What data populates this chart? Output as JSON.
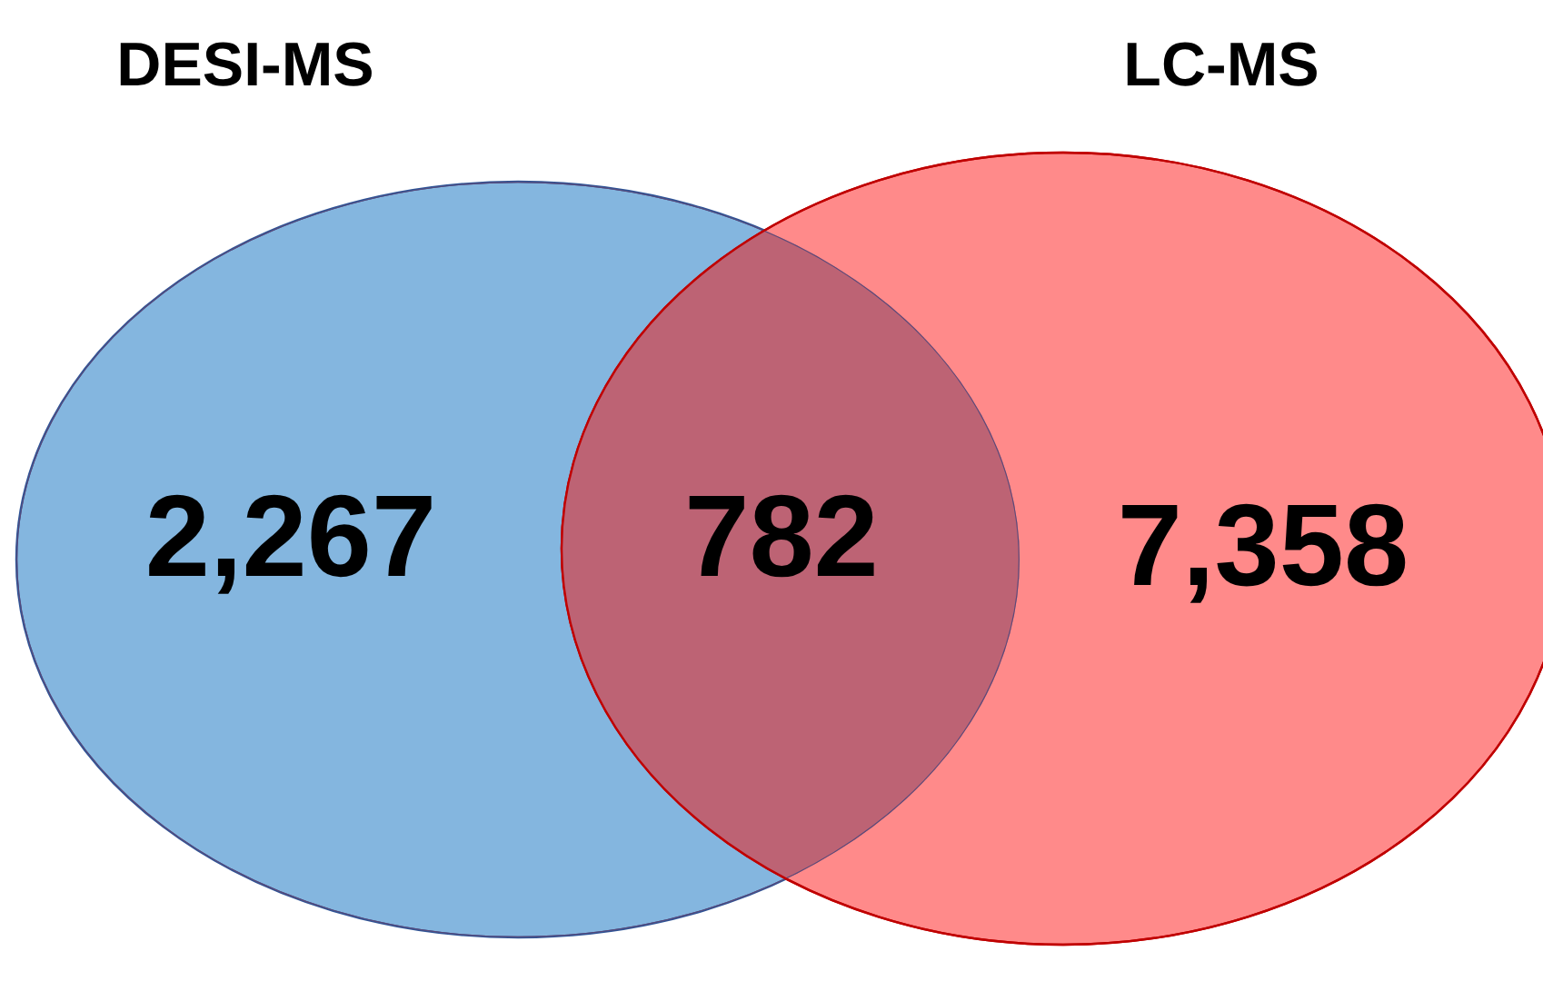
{
  "chart_data": {
    "type": "other",
    "categories": [
      "DESI-MS",
      null,
      "LC-MS"
    ],
    "values": [
      2267,
      782,
      7358
    ],
    "value_labels": [
      "2,267",
      "782",
      "7,358"
    ],
    "colors": [
      "#84b6df",
      "#bd6374",
      "#ff8a8a"
    ]
  }
}
